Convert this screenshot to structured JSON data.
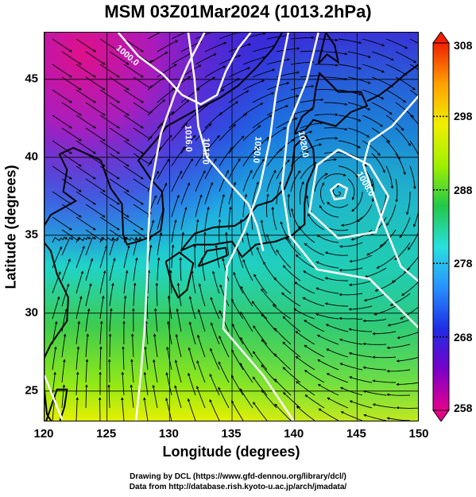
{
  "title": "MSM 03Z01Mar2024 (1013.2hPa)",
  "axes": {
    "xlabel": "Longitude (degrees)",
    "ylabel": "Latitude  (degrees)",
    "xlim": [
      120,
      150
    ],
    "ylim": [
      23,
      48
    ],
    "xticks": [
      "120",
      "125",
      "130",
      "135",
      "140",
      "145",
      "150"
    ],
    "yticks": [
      "25",
      "30",
      "35",
      "40",
      "45"
    ],
    "grid": "on"
  },
  "colorbar": {
    "min": 258,
    "max": 308,
    "labels": [
      "258",
      "268",
      "278",
      "288",
      "298",
      "308"
    ],
    "colors": [
      "#e6008c",
      "#7a00c8",
      "#1e2ee6",
      "#2890ff",
      "#28e0e0",
      "#22c84a",
      "#a0f000",
      "#f0f000",
      "#ffa000",
      "#f02000"
    ]
  },
  "map_data": {
    "field": "temperature (shading), wind (streamlines), pressure (white contours)",
    "pressure_contours_hpa": [
      "1000.0",
      "1008.0",
      "1012.0",
      "1016.0",
      "1020.0",
      "1020.0"
    ],
    "low_center": {
      "lon": 143.5,
      "lat": 37.8
    }
  },
  "credits": {
    "line1": "Drawing by DCL (https://www.gfd-dennou.org/library/dcl/)",
    "line2": "Data from http://database.rish.kyoto-u.ac.jp/arch/jmadata/"
  }
}
